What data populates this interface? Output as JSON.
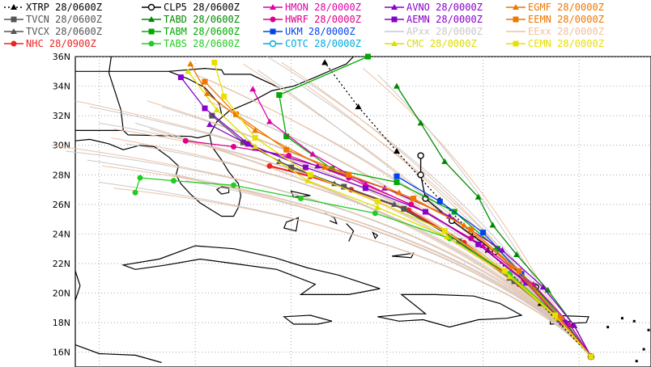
{
  "legend": [
    {
      "label": "XTRP 28/0600Z",
      "color": "#000000",
      "marker": "triangle",
      "dash": "2,3"
    },
    {
      "label": "TVCN 28/0600Z",
      "color": "#555555",
      "marker": "square",
      "dash": ""
    },
    {
      "label": "TVCX 28/0600Z",
      "color": "#555555",
      "marker": "triangle",
      "dash": ""
    },
    {
      "label": "NHC 28/0900Z",
      "color": "#ee2222",
      "marker": "circle",
      "dash": ""
    },
    {
      "label": "CLP5 28/0600Z",
      "color": "#000000",
      "marker": "ocircle",
      "dash": ""
    },
    {
      "label": "TABD 28/0600Z",
      "color": "#008800",
      "marker": "triangle",
      "dash": ""
    },
    {
      "label": "TABM 28/0600Z",
      "color": "#00aa00",
      "marker": "square",
      "dash": ""
    },
    {
      "label": "TABS 28/0600Z",
      "color": "#22cc22",
      "marker": "circle",
      "dash": ""
    },
    {
      "label": "HMON 28/0000Z",
      "color": "#dd00aa",
      "marker": "triangle",
      "dash": ""
    },
    {
      "label": "HWRF 28/0000Z",
      "color": "#dd0088",
      "marker": "circle",
      "dash": ""
    },
    {
      "label": "UKM 28/0000Z",
      "color": "#0044ee",
      "marker": "square",
      "dash": ""
    },
    {
      "label": "COTC 28/0000Z",
      "color": "#00aadd",
      "marker": "ocircle",
      "dash": ""
    },
    {
      "label": "AVNO 28/0000Z",
      "color": "#8800cc",
      "marker": "triangle",
      "dash": ""
    },
    {
      "label": "AEMN 28/0000Z",
      "color": "#8800cc",
      "marker": "square",
      "dash": ""
    },
    {
      "label": "APxx 28/0000Z",
      "color": "#c8c8c8",
      "marker": "none",
      "dash": ""
    },
    {
      "label": "CMC 28/0000Z",
      "color": "#dddd00",
      "marker": "triangle",
      "dash": ""
    },
    {
      "label": "EGMF 28/0000Z",
      "color": "#ee7700",
      "marker": "triangle",
      "dash": ""
    },
    {
      "label": "EEMN 28/0000Z",
      "color": "#ee7700",
      "marker": "square",
      "dash": ""
    },
    {
      "label": "EExx 28/0000Z",
      "color": "#f0c0a0",
      "marker": "none",
      "dash": ""
    },
    {
      "label": "CEMN 28/0000Z",
      "color": "#e8e000",
      "marker": "square",
      "dash": ""
    }
  ],
  "chart_data": {
    "type": "scatter",
    "title": "",
    "xlabel": "",
    "ylabel": "",
    "ylim": [
      15,
      36
    ],
    "yticks": [
      "36N",
      "34N",
      "32N",
      "30N",
      "28N",
      "26N",
      "24N",
      "22N",
      "20N",
      "18N",
      "16N"
    ],
    "grid": true,
    "legend_position": "top",
    "series": [
      {
        "name": "NHC 28/0900Z",
        "color": "#ee2222",
        "marker": "circle",
        "points": [
          [
            -65.5,
            15.7
          ],
          [
            -66.6,
            17.9
          ],
          [
            -68.5,
            20.6
          ],
          [
            -70.8,
            23.4
          ],
          [
            -73.1,
            25.6
          ],
          [
            -75.5,
            27.0
          ],
          [
            -77.2,
            27.9
          ],
          [
            -78.9,
            28.6
          ]
        ]
      },
      {
        "name": "TVCN 28/0600Z",
        "color": "#555555",
        "marker": "square",
        "points": [
          [
            -65.5,
            15.7
          ],
          [
            -66.7,
            18.0
          ],
          [
            -68.7,
            20.8
          ],
          [
            -71.0,
            23.5
          ],
          [
            -73.3,
            25.7
          ],
          [
            -75.8,
            27.2
          ],
          [
            -78.0,
            28.5
          ],
          [
            -80.0,
            30.2
          ],
          [
            -81.3,
            32.0
          ]
        ]
      },
      {
        "name": "XTRP 28/0600Z",
        "color": "#000000",
        "marker": "triangle",
        "points": [
          [
            -65.5,
            15.7
          ],
          [
            -67.6,
            19.3
          ],
          [
            -69.8,
            22.9
          ],
          [
            -71.8,
            26.3
          ],
          [
            -73.6,
            29.6
          ],
          [
            -75.2,
            32.6
          ],
          [
            -76.6,
            35.6
          ]
        ]
      },
      {
        "name": "TVCX 28/0600Z",
        "color": "#555555",
        "marker": "triangle",
        "points": [
          [
            -65.5,
            15.7
          ],
          [
            -66.8,
            18.2
          ],
          [
            -68.9,
            21.0
          ],
          [
            -71.3,
            23.8
          ],
          [
            -73.7,
            26.0
          ],
          [
            -76.2,
            27.4
          ],
          [
            -78.5,
            28.9
          ]
        ]
      },
      {
        "name": "CLP5 28/0600Z",
        "color": "#000000",
        "marker": "ocircle",
        "points": [
          [
            -65.5,
            15.7
          ],
          [
            -66.4,
            17.9
          ],
          [
            -67.8,
            20.4
          ],
          [
            -69.5,
            22.8
          ],
          [
            -71.3,
            24.9
          ],
          [
            -72.4,
            26.4
          ],
          [
            -72.6,
            28.0
          ],
          [
            -72.6,
            29.3
          ]
        ]
      },
      {
        "name": "TABD 28/0600Z",
        "color": "#008800",
        "marker": "triangle",
        "points": [
          [
            -65.5,
            15.7
          ],
          [
            -66.2,
            17.8
          ],
          [
            -67.3,
            20.2
          ],
          [
            -68.6,
            22.6
          ],
          [
            -69.6,
            24.6
          ],
          [
            -70.2,
            26.5
          ],
          [
            -71.6,
            28.9
          ],
          [
            -72.6,
            31.5
          ],
          [
            -73.6,
            34.0
          ]
        ]
      },
      {
        "name": "TABM 28/0600Z",
        "color": "#00aa00",
        "marker": "square",
        "points": [
          [
            -65.5,
            15.7
          ],
          [
            -66.5,
            17.9
          ],
          [
            -67.9,
            20.5
          ],
          [
            -69.4,
            23.0
          ],
          [
            -71.2,
            25.5
          ],
          [
            -73.6,
            27.5
          ],
          [
            -76.3,
            28.4
          ],
          [
            -78.2,
            30.6
          ],
          [
            -78.5,
            33.4
          ],
          [
            -74.8,
            36.0
          ]
        ]
      },
      {
        "name": "TABS 28/0600Z",
        "color": "#22cc22",
        "marker": "circle",
        "points": [
          [
            -65.5,
            15.7
          ],
          [
            -67.0,
            18.6
          ],
          [
            -68.9,
            21.3
          ],
          [
            -71.4,
            23.7
          ],
          [
            -74.5,
            25.4
          ],
          [
            -77.6,
            26.4
          ],
          [
            -80.4,
            27.3
          ],
          [
            -82.9,
            27.6
          ],
          [
            -84.3,
            27.8
          ],
          [
            -84.5,
            26.8
          ]
        ]
      },
      {
        "name": "HMON 28/0000Z",
        "color": "#dd00aa",
        "marker": "triangle",
        "points": [
          [
            -65.5,
            15.7
          ],
          [
            -66.4,
            17.9
          ],
          [
            -67.9,
            20.6
          ],
          [
            -70.0,
            23.2
          ],
          [
            -72.4,
            25.5
          ],
          [
            -74.9,
            27.4
          ],
          [
            -77.1,
            29.4
          ],
          [
            -78.9,
            31.6
          ],
          [
            -79.6,
            33.8
          ]
        ]
      },
      {
        "name": "HWRF 28/0000Z",
        "color": "#dd0088",
        "marker": "circle",
        "points": [
          [
            -65.5,
            15.7
          ],
          [
            -66.7,
            18.0
          ],
          [
            -68.3,
            20.9
          ],
          [
            -70.5,
            23.7
          ],
          [
            -73.0,
            26.0
          ],
          [
            -75.6,
            27.8
          ],
          [
            -78.1,
            29.3
          ],
          [
            -80.4,
            29.9
          ],
          [
            -82.4,
            30.3
          ]
        ]
      },
      {
        "name": "UKM 28/0000Z",
        "color": "#0044ee",
        "marker": "square",
        "points": [
          [
            -65.5,
            15.7
          ],
          [
            -66.8,
            18.2
          ],
          [
            -68.4,
            21.3
          ],
          [
            -70.0,
            24.1
          ],
          [
            -71.8,
            26.2
          ],
          [
            -73.6,
            27.9
          ]
        ]
      },
      {
        "name": "AVNO 28/0000Z",
        "color": "#8800cc",
        "marker": "triangle",
        "points": [
          [
            -65.5,
            15.7
          ],
          [
            -66.2,
            17.8
          ],
          [
            -67.5,
            20.4
          ],
          [
            -69.2,
            22.9
          ],
          [
            -71.4,
            25.2
          ],
          [
            -74.1,
            27.1
          ],
          [
            -76.9,
            28.6
          ],
          [
            -79.5,
            29.8
          ],
          [
            -81.4,
            31.4
          ]
        ]
      },
      {
        "name": "AEMN 28/0000Z",
        "color": "#8800cc",
        "marker": "square",
        "points": [
          [
            -65.5,
            15.7
          ],
          [
            -66.6,
            18.0
          ],
          [
            -68.2,
            20.7
          ],
          [
            -70.2,
            23.3
          ],
          [
            -72.4,
            25.5
          ],
          [
            -74.9,
            27.1
          ],
          [
            -77.4,
            28.5
          ],
          [
            -79.8,
            30.1
          ],
          [
            -81.6,
            32.5
          ],
          [
            -82.6,
            34.6
          ]
        ]
      },
      {
        "name": "CMC 28/0000Z",
        "color": "#dddd00",
        "marker": "triangle",
        "points": [
          [
            -65.5,
            15.7
          ],
          [
            -66.9,
            18.3
          ],
          [
            -68.9,
            21.1
          ],
          [
            -71.5,
            23.8
          ],
          [
            -74.4,
            25.8
          ],
          [
            -77.3,
            27.6
          ],
          [
            -79.5,
            29.9
          ],
          [
            -81.1,
            32.4
          ],
          [
            -82.3,
            35.0
          ]
        ]
      },
      {
        "name": "EGMF 28/0000Z",
        "color": "#ee7700",
        "marker": "triangle",
        "points": [
          [
            -65.5,
            15.7
          ],
          [
            -66.9,
            18.5
          ],
          [
            -68.8,
            21.8
          ],
          [
            -70.8,
            24.6
          ],
          [
            -73.5,
            26.8
          ],
          [
            -76.6,
            28.5
          ],
          [
            -79.5,
            31.0
          ],
          [
            -81.5,
            33.5
          ],
          [
            -82.2,
            35.5
          ]
        ]
      },
      {
        "name": "EEMN 28/0000Z",
        "color": "#ee7700",
        "marker": "square",
        "points": [
          [
            -65.5,
            15.7
          ],
          [
            -66.8,
            18.3
          ],
          [
            -68.5,
            21.5
          ],
          [
            -70.5,
            24.3
          ],
          [
            -72.9,
            26.4
          ],
          [
            -75.6,
            28.0
          ],
          [
            -78.2,
            29.7
          ],
          [
            -80.3,
            32.1
          ],
          [
            -81.6,
            34.3
          ]
        ]
      },
      {
        "name": "CEMN 28/0000Z",
        "color": "#e8e000",
        "marker": "square",
        "points": [
          [
            -65.5,
            15.7
          ],
          [
            -67.0,
            18.5
          ],
          [
            -69.1,
            21.5
          ],
          [
            -71.6,
            24.2
          ],
          [
            -74.4,
            26.2
          ],
          [
            -77.2,
            28.0
          ],
          [
            -79.5,
            30.5
          ],
          [
            -80.8,
            33.3
          ],
          [
            -81.2,
            35.6
          ]
        ]
      }
    ]
  }
}
